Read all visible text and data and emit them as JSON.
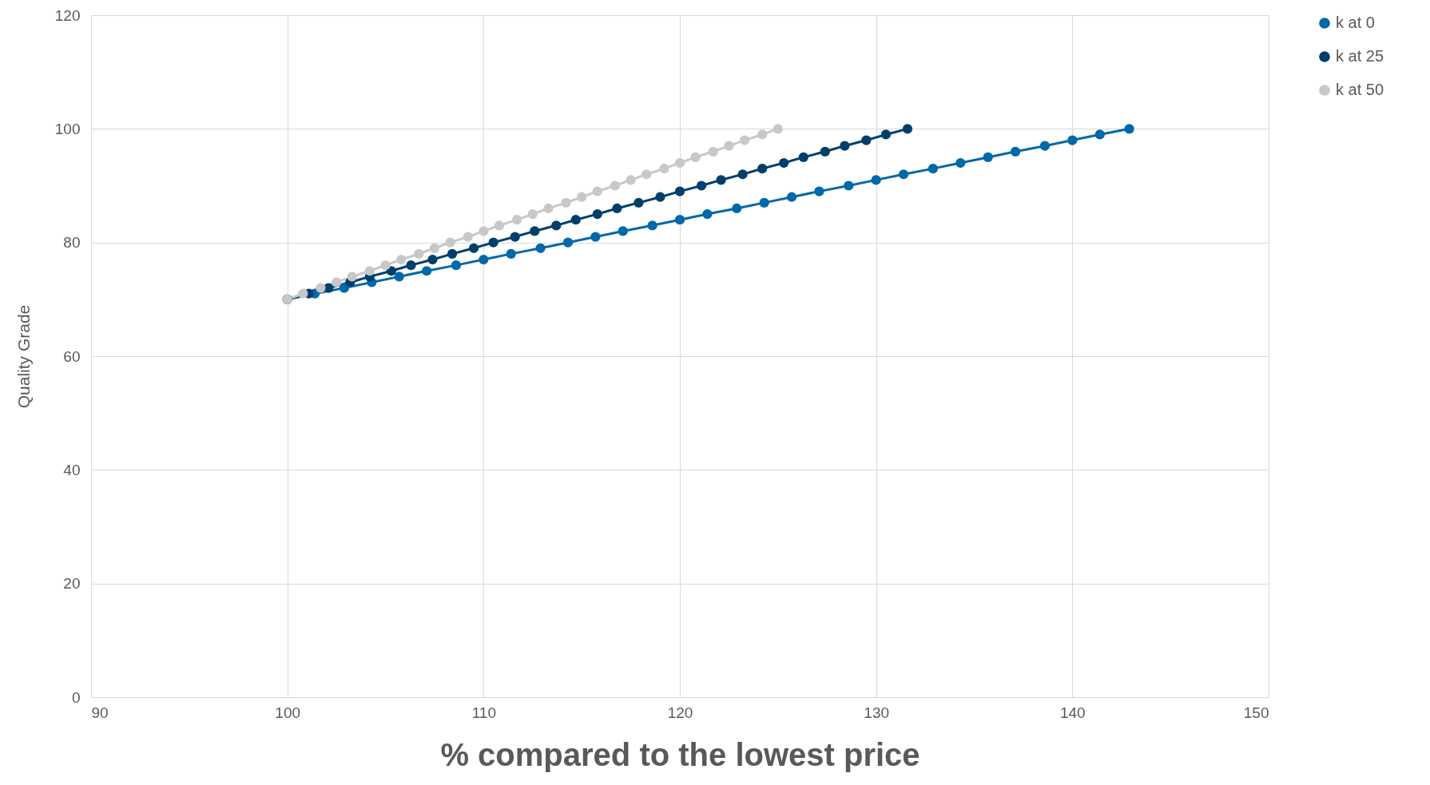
{
  "chart_data": {
    "type": "line",
    "xlabel": "% compared to the lowest price",
    "ylabel": "Quality Grade",
    "xlim": [
      90,
      150
    ],
    "xticks": [
      90,
      100,
      110,
      120,
      130,
      140,
      150
    ],
    "ylim": [
      0,
      120
    ],
    "yticks": [
      0,
      20,
      40,
      60,
      80,
      100,
      120
    ],
    "grid": true,
    "legend": "right",
    "marker": "circle",
    "line_style": "solid",
    "series": [
      {
        "name": "k at 0",
        "color": "#0069a8",
        "x": [
          100,
          101.4,
          102.9,
          104.3,
          105.7,
          107.1,
          108.6,
          110,
          111.4,
          112.9,
          114.3,
          115.7,
          117.1,
          118.6,
          120,
          121.4,
          122.9,
          124.3,
          125.7,
          127.1,
          128.6,
          130,
          131.4,
          132.9,
          134.3,
          135.7,
          137.1,
          138.6,
          140,
          141.4,
          142.9
        ],
        "values": [
          70,
          71,
          72,
          73,
          74,
          75,
          76,
          77,
          78,
          79,
          80,
          81,
          82,
          83,
          84,
          85,
          86,
          87,
          88,
          89,
          90,
          91,
          92,
          93,
          94,
          95,
          96,
          97,
          98,
          99,
          100
        ]
      },
      {
        "name": "k at 25",
        "color": "#003f6b",
        "x": [
          100,
          101.1,
          102.1,
          103.2,
          104.2,
          105.3,
          106.3,
          107.4,
          108.4,
          109.5,
          110.5,
          111.6,
          112.6,
          113.7,
          114.7,
          115.8,
          116.8,
          117.9,
          119,
          120,
          121.1,
          122.1,
          123.2,
          124.2,
          125.3,
          126.3,
          127.4,
          128.4,
          129.5,
          130.5,
          131.6
        ],
        "values": [
          70,
          71,
          72,
          73,
          74,
          75,
          76,
          77,
          78,
          79,
          80,
          81,
          82,
          83,
          84,
          85,
          86,
          87,
          88,
          89,
          90,
          91,
          92,
          93,
          94,
          95,
          96,
          97,
          98,
          99,
          100
        ]
      },
      {
        "name": "k at 50",
        "color": "#c8c8c8",
        "x": [
          100,
          100.8,
          101.7,
          102.5,
          103.3,
          104.2,
          105,
          105.8,
          106.7,
          107.5,
          108.3,
          109.2,
          110,
          110.8,
          111.7,
          112.5,
          113.3,
          114.2,
          115,
          115.8,
          116.7,
          117.5,
          118.3,
          119.2,
          120,
          120.8,
          121.7,
          122.5,
          123.3,
          124.2,
          125
        ],
        "values": [
          70,
          71,
          72,
          73,
          74,
          75,
          76,
          77,
          78,
          79,
          80,
          81,
          82,
          83,
          84,
          85,
          86,
          87,
          88,
          89,
          90,
          91,
          92,
          93,
          94,
          95,
          96,
          97,
          98,
          99,
          100
        ]
      }
    ]
  }
}
